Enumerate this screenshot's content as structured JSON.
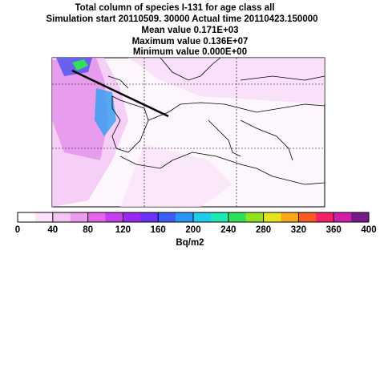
{
  "header": {
    "title": "Total column of species I-131   for age class all",
    "subtitle": "Simulation start 20110509. 30000   Actual time 20110423.150000",
    "stats": [
      "Mean value  0.171E+03",
      "Maximum value  0.136E+07",
      "Minimum value  0.000E+00"
    ]
  },
  "colorbar": {
    "xlim": [
      0,
      400
    ],
    "xticks": [
      0,
      40,
      80,
      120,
      160,
      200,
      240,
      280,
      320,
      360,
      400
    ],
    "colors": [
      "#ffffff",
      "#fbe3fb",
      "#f4c4f4",
      "#ee9cee",
      "#e266ea",
      "#c83cf0",
      "#9c28f0",
      "#6a34f6",
      "#3c5cf8",
      "#2a96f4",
      "#20ccec",
      "#1ee8b4",
      "#2ee05a",
      "#90e21e",
      "#e6e41a",
      "#f8a818",
      "#f85a22",
      "#f41e6a",
      "#d01ea6",
      "#7a1a8a"
    ],
    "label": "Bq/m2"
  }
}
